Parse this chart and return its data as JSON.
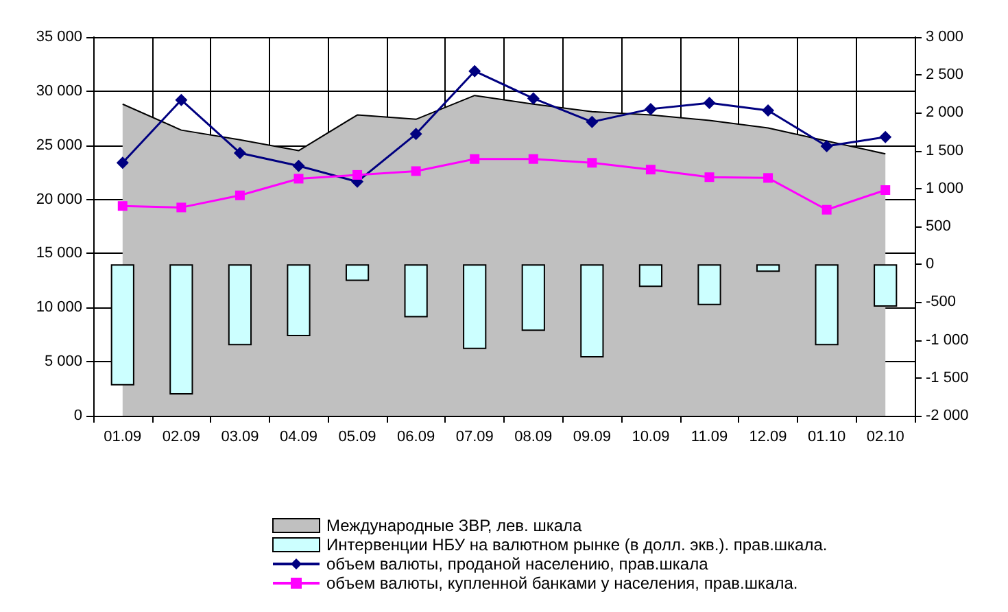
{
  "chart_data": {
    "type": "line",
    "categories": [
      "01.09",
      "02.09",
      "03.09",
      "04.09",
      "05.09",
      "06.09",
      "07.09",
      "08.09",
      "09.09",
      "10.09",
      "11.09",
      "12.09",
      "01.10",
      "02.10"
    ],
    "series": [
      {
        "name": "Международные ЗВР, лев. шкала",
        "type": "area",
        "color": "#c0c0c0",
        "values": [
          28800,
          26400,
          25500,
          24500,
          27800,
          27400,
          29600,
          28800,
          28100,
          27800,
          27300,
          26600,
          25400,
          24200
        ]
      },
      {
        "name": "Интервенции НБУ на валютном рынке (в долл. экв.). прав.шкала.",
        "type": "bar",
        "axis": "y2",
        "color": "#ccffff",
        "values": [
          -1600,
          -1720,
          -1070,
          -950,
          -220,
          -700,
          -1120,
          -880,
          -1230,
          -300,
          -540,
          -100,
          -1070,
          -560
        ]
      },
      {
        "name": "объем валюты, проданой населению, прав.шкала",
        "axis": "y2",
        "color": "#000080",
        "marker": "diamond",
        "values": [
          1340,
          2170,
          1470,
          1300,
          1090,
          1720,
          2550,
          2190,
          1880,
          2050,
          2130,
          2030,
          1560,
          1680
        ]
      },
      {
        "name": "объем валюты, купленной банками у населения, прав.шкала.",
        "axis": "y2",
        "color": "#ff00ff",
        "marker": "square",
        "values": [
          770,
          750,
          910,
          1130,
          1180,
          1230,
          1390,
          1390,
          1340,
          1250,
          1150,
          1140,
          720,
          980
        ]
      }
    ],
    "ylim": [
      0,
      35000
    ],
    "yticks": [
      0,
      {
        "value": 5000,
        "label": "5 000"
      },
      {
        "value": 10000,
        "label": "10 000"
      },
      {
        "value": 15000,
        "label": "15 000"
      },
      {
        "value": 20000,
        "label": "20 000"
      },
      {
        "value": 25000,
        "label": "25 000"
      },
      {
        "value": 30000,
        "label": "30 000"
      },
      {
        "value": 35000,
        "label": "35 000"
      }
    ],
    "y2lim": [
      -2000,
      3000
    ],
    "y2ticks": [
      {
        "value": -2000,
        "label": "-2 000"
      },
      {
        "value": -1500,
        "label": "-1 500"
      },
      {
        "value": -1000,
        "label": "-1 000"
      },
      -500,
      0,
      500,
      {
        "value": 1000,
        "label": "1 000"
      },
      {
        "value": 1500,
        "label": "1 500"
      },
      {
        "value": 2000,
        "label": "2 000"
      },
      {
        "value": 2500,
        "label": "2 500"
      },
      {
        "value": 3000,
        "label": "3 000"
      }
    ],
    "grid": true,
    "legend": "bottom"
  }
}
